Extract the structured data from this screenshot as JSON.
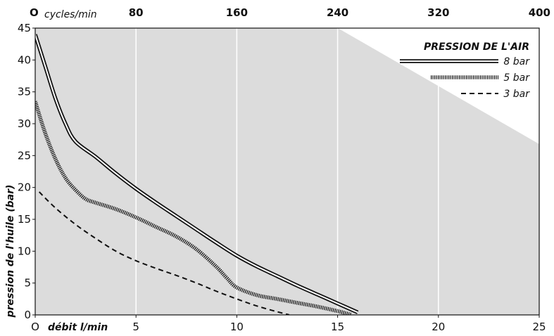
{
  "chart_data": {
    "type": "line",
    "xlabel": "débit l/min",
    "ylabel": "pression de l'huile (bar)",
    "xlim": [
      0,
      25
    ],
    "ylim": [
      0,
      45
    ],
    "x_ticks": [
      0,
      5,
      10,
      15,
      20,
      25
    ],
    "x_tick_labels": [
      "O",
      "5",
      "10",
      "15",
      "20",
      "25"
    ],
    "y_ticks": [
      0,
      5,
      10,
      15,
      20,
      25,
      30,
      35,
      40,
      45
    ],
    "top_axis": {
      "unit": "cycles/min",
      "ticks": [
        0,
        80,
        160,
        240,
        320,
        400
      ],
      "tick_labels": [
        "O",
        "80",
        "160",
        "240",
        "320",
        "400"
      ]
    },
    "grid": true,
    "legend": {
      "title": "PRESSION DE L'AIR",
      "placement": "top-right"
    },
    "series": [
      {
        "name": "8 bar",
        "style": "double",
        "x": [
          0,
          0.5,
          1,
          1.5,
          2,
          3,
          4,
          5,
          6,
          7,
          8,
          9,
          10,
          11,
          12,
          13,
          14,
          15,
          16
        ],
        "y": [
          44,
          39,
          34,
          30,
          27.2,
          24.8,
          22.2,
          19.8,
          17.6,
          15.5,
          13.4,
          11.3,
          9.3,
          7.6,
          6.1,
          4.6,
          3.2,
          1.8,
          0.4
        ]
      },
      {
        "name": "5 bar",
        "style": "hatched",
        "x": [
          0,
          0.5,
          1,
          1.5,
          2,
          2.5,
          3,
          4,
          5,
          6,
          7,
          8,
          9,
          9.5,
          10,
          11,
          12,
          13,
          14,
          15,
          15.7
        ],
        "y": [
          33.5,
          28.5,
          24.5,
          21.5,
          19.6,
          18.2,
          17.6,
          16.6,
          15.3,
          13.8,
          12.3,
          10.3,
          7.5,
          5.8,
          4.3,
          3.1,
          2.5,
          1.9,
          1.3,
          0.6,
          0
        ]
      },
      {
        "name": "3 bar",
        "style": "dashed",
        "x": [
          0.2,
          1,
          2,
          3,
          4,
          5,
          6,
          7,
          8,
          9,
          10,
          11,
          12,
          12.6
        ],
        "y": [
          19.3,
          16.8,
          14.2,
          12,
          10,
          8.5,
          7.3,
          6.2,
          5,
          3.7,
          2.5,
          1.4,
          0.5,
          0
        ]
      }
    ]
  }
}
